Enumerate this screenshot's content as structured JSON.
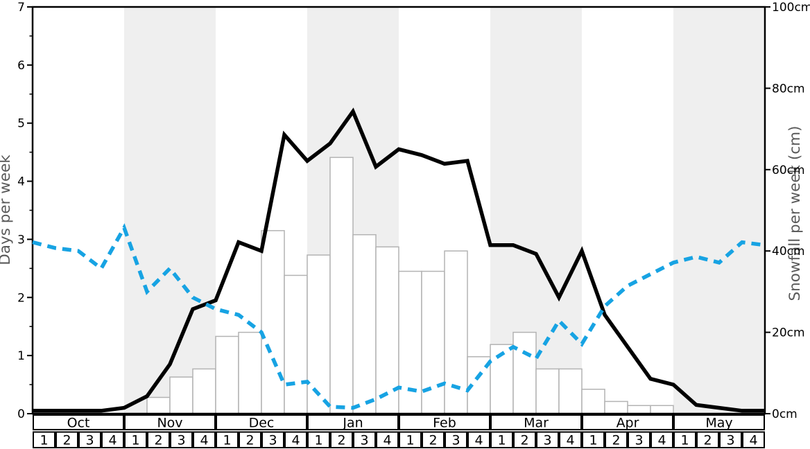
{
  "chart_data": {
    "type": "composite",
    "title": "",
    "x": {
      "months": [
        "Oct",
        "Nov",
        "Dec",
        "Jan",
        "Feb",
        "Mar",
        "Apr",
        "May"
      ],
      "weeks_per_month": 4,
      "week_labels": [
        "1",
        "2",
        "3",
        "4"
      ],
      "shaded_month_indices": [
        1,
        3,
        5,
        7
      ]
    },
    "left_axis": {
      "label": "Days per week",
      "min": 0,
      "max": 7,
      "major_ticks": [
        0,
        1,
        2,
        3,
        4,
        5,
        6,
        7
      ],
      "minor_step": 0.5
    },
    "right_axis": {
      "label": "Snowfall per week (cm)",
      "min": 0,
      "max": 100,
      "major_ticks": [
        0,
        20,
        40,
        60,
        80,
        100
      ],
      "tick_suffix": "cm"
    },
    "series": [
      {
        "name": "snowfall-bars",
        "type": "bar",
        "axis": "right",
        "unit": "cm",
        "fill": "#ffffff",
        "stroke": "#b3b3b3",
        "values": [
          0,
          0,
          0,
          0,
          0,
          4,
          9,
          11,
          19,
          20,
          45,
          34,
          39,
          63,
          44,
          41,
          35,
          35,
          40,
          14,
          17,
          20,
          11,
          11,
          6,
          3,
          2,
          2,
          0,
          0,
          0,
          0
        ]
      },
      {
        "name": "snow-days-line",
        "type": "line",
        "axis": "left",
        "color": "#000000",
        "dash": "solid",
        "values": [
          0.05,
          0.05,
          0.05,
          0.05,
          0.1,
          0.3,
          0.85,
          1.8,
          1.95,
          2.95,
          2.8,
          4.8,
          4.35,
          4.65,
          5.2,
          4.25,
          4.55,
          4.45,
          4.3,
          4.35,
          2.9,
          2.9,
          2.75,
          2.0,
          2.8,
          1.7,
          1.15,
          0.6,
          0.5,
          0.15,
          0.1,
          0.05,
          0.05
        ]
      },
      {
        "name": "blue-dashed-line",
        "type": "line",
        "axis": "left",
        "color": "#17a3e3",
        "dash": "13 9",
        "values": [
          2.95,
          2.85,
          2.8,
          2.5,
          3.2,
          2.1,
          2.5,
          2.0,
          1.8,
          1.7,
          1.4,
          0.5,
          0.55,
          0.12,
          0.1,
          0.25,
          0.45,
          0.38,
          0.52,
          0.4,
          0.9,
          1.15,
          0.95,
          1.6,
          1.2,
          1.85,
          2.2,
          2.4,
          2.6,
          2.7,
          2.6,
          2.95,
          2.9
        ]
      }
    ],
    "band_color": "#efefef",
    "axis_title_color": "#5a5a5a",
    "legend": "none",
    "grid": "off"
  }
}
